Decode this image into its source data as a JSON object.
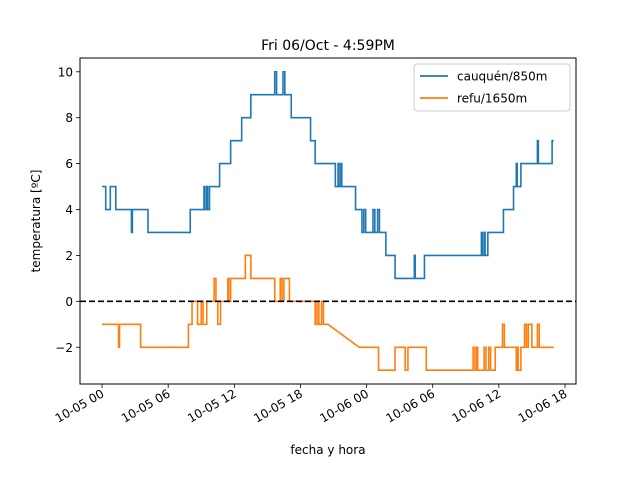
{
  "chart_data": {
    "type": "line",
    "title": "Fri 06/Oct - 4:59PM",
    "xlabel": "fecha y hora",
    "ylabel": "temperatura [ºC]",
    "x_unit": "hours",
    "xlim": [
      "2023-10-04 22:00",
      "2023-10-06 19:00"
    ],
    "ylim": [
      -3.6,
      10.6
    ],
    "grid": false,
    "legend_position": "top-right",
    "x_ticks": [
      {
        "value": "2023-10-05 00:00",
        "label": "10-05 00"
      },
      {
        "value": "2023-10-05 06:00",
        "label": "10-05 06"
      },
      {
        "value": "2023-10-05 12:00",
        "label": "10-05 12"
      },
      {
        "value": "2023-10-05 18:00",
        "label": "10-05 18"
      },
      {
        "value": "2023-10-06 00:00",
        "label": "10-06 00"
      },
      {
        "value": "2023-10-06 06:00",
        "label": "10-06 06"
      },
      {
        "value": "2023-10-06 12:00",
        "label": "10-06 12"
      },
      {
        "value": "2023-10-06 18:00",
        "label": "10-06 18"
      }
    ],
    "y_ticks": [
      -2,
      0,
      2,
      4,
      6,
      8,
      10
    ],
    "reference_line": {
      "y": 0,
      "style": "dashed",
      "color": "#000000"
    },
    "series": [
      {
        "name": "cauquén/850m",
        "color": "#1f77b4",
        "points": [
          [
            "2023-10-05 00:00",
            5
          ],
          [
            "2023-10-05 00:20",
            5
          ],
          [
            "2023-10-05 00:20",
            4
          ],
          [
            "2023-10-05 00:45",
            4
          ],
          [
            "2023-10-05 00:45",
            5
          ],
          [
            "2023-10-05 01:15",
            5
          ],
          [
            "2023-10-05 01:15",
            4
          ],
          [
            "2023-10-05 02:40",
            4
          ],
          [
            "2023-10-05 02:40",
            3
          ],
          [
            "2023-10-05 02:45",
            3
          ],
          [
            "2023-10-05 02:45",
            4
          ],
          [
            "2023-10-05 04:10",
            4
          ],
          [
            "2023-10-05 04:10",
            3
          ],
          [
            "2023-10-05 08:00",
            3
          ],
          [
            "2023-10-05 08:00",
            4
          ],
          [
            "2023-10-05 09:15",
            4
          ],
          [
            "2023-10-05 09:15",
            5
          ],
          [
            "2023-10-05 09:20",
            5
          ],
          [
            "2023-10-05 09:20",
            4
          ],
          [
            "2023-10-05 09:30",
            4
          ],
          [
            "2023-10-05 09:30",
            5
          ],
          [
            "2023-10-05 09:35",
            5
          ],
          [
            "2023-10-05 09:35",
            4
          ],
          [
            "2023-10-05 09:45",
            4
          ],
          [
            "2023-10-05 09:45",
            5
          ],
          [
            "2023-10-05 10:40",
            5
          ],
          [
            "2023-10-05 10:40",
            6
          ],
          [
            "2023-10-05 11:40",
            6
          ],
          [
            "2023-10-05 11:40",
            7
          ],
          [
            "2023-10-05 12:40",
            7
          ],
          [
            "2023-10-05 12:40",
            8
          ],
          [
            "2023-10-05 13:30",
            8
          ],
          [
            "2023-10-05 13:30",
            9
          ],
          [
            "2023-10-05 15:40",
            9
          ],
          [
            "2023-10-05 15:40",
            10
          ],
          [
            "2023-10-05 15:50",
            10
          ],
          [
            "2023-10-05 15:50",
            9
          ],
          [
            "2023-10-05 16:25",
            9
          ],
          [
            "2023-10-05 16:25",
            10
          ],
          [
            "2023-10-05 16:35",
            10
          ],
          [
            "2023-10-05 16:35",
            9
          ],
          [
            "2023-10-05 17:10",
            9
          ],
          [
            "2023-10-05 17:10",
            8
          ],
          [
            "2023-10-05 18:55",
            8
          ],
          [
            "2023-10-05 18:55",
            7
          ],
          [
            "2023-10-05 19:20",
            7
          ],
          [
            "2023-10-05 19:20",
            6
          ],
          [
            "2023-10-05 21:10",
            6
          ],
          [
            "2023-10-05 21:10",
            5
          ],
          [
            "2023-10-05 21:25",
            5
          ],
          [
            "2023-10-05 21:25",
            6
          ],
          [
            "2023-10-05 21:30",
            6
          ],
          [
            "2023-10-05 21:30",
            5
          ],
          [
            "2023-10-05 21:40",
            5
          ],
          [
            "2023-10-05 21:40",
            6
          ],
          [
            "2023-10-05 21:45",
            6
          ],
          [
            "2023-10-05 21:45",
            5
          ],
          [
            "2023-10-05 23:00",
            5
          ],
          [
            "2023-10-05 23:00",
            4
          ],
          [
            "2023-10-05 23:35",
            4
          ],
          [
            "2023-10-05 23:35",
            3
          ],
          [
            "2023-10-05 23:45",
            3
          ],
          [
            "2023-10-05 23:45",
            4
          ],
          [
            "2023-10-05 23:55",
            4
          ],
          [
            "2023-10-05 23:55",
            3
          ],
          [
            "2023-10-06 00:35",
            3
          ],
          [
            "2023-10-06 00:35",
            4
          ],
          [
            "2023-10-06 00:45",
            4
          ],
          [
            "2023-10-06 00:45",
            3
          ],
          [
            "2023-10-06 01:00",
            3
          ],
          [
            "2023-10-06 01:00",
            4
          ],
          [
            "2023-10-06 01:10",
            4
          ],
          [
            "2023-10-06 01:10",
            3
          ],
          [
            "2023-10-06 01:45",
            3
          ],
          [
            "2023-10-06 01:45",
            2
          ],
          [
            "2023-10-06 02:35",
            2
          ],
          [
            "2023-10-06 02:35",
            1
          ],
          [
            "2023-10-06 04:20",
            1
          ],
          [
            "2023-10-06 04:20",
            2
          ],
          [
            "2023-10-06 04:25",
            2
          ],
          [
            "2023-10-06 04:25",
            1
          ],
          [
            "2023-10-06 05:15",
            1
          ],
          [
            "2023-10-06 05:15",
            2
          ],
          [
            "2023-10-06 10:25",
            2
          ],
          [
            "2023-10-06 10:25",
            3
          ],
          [
            "2023-10-06 10:30",
            3
          ],
          [
            "2023-10-06 10:30",
            2
          ],
          [
            "2023-10-06 10:40",
            2
          ],
          [
            "2023-10-06 10:40",
            3
          ],
          [
            "2023-10-06 10:45",
            3
          ],
          [
            "2023-10-06 10:45",
            2
          ],
          [
            "2023-10-06 11:00",
            2
          ],
          [
            "2023-10-06 11:00",
            3
          ],
          [
            "2023-10-06 12:25",
            3
          ],
          [
            "2023-10-06 12:25",
            4
          ],
          [
            "2023-10-06 13:20",
            4
          ],
          [
            "2023-10-06 13:20",
            5
          ],
          [
            "2023-10-06 13:35",
            5
          ],
          [
            "2023-10-06 13:35",
            6
          ],
          [
            "2023-10-06 13:40",
            6
          ],
          [
            "2023-10-06 13:40",
            5
          ],
          [
            "2023-10-06 14:00",
            5
          ],
          [
            "2023-10-06 14:00",
            6
          ],
          [
            "2023-10-06 15:30",
            6
          ],
          [
            "2023-10-06 15:30",
            7
          ],
          [
            "2023-10-06 15:35",
            7
          ],
          [
            "2023-10-06 15:35",
            6
          ],
          [
            "2023-10-06 16:50",
            6
          ],
          [
            "2023-10-06 16:50",
            7
          ],
          [
            "2023-10-06 16:59",
            7
          ]
        ]
      },
      {
        "name": "refu/1650m",
        "color": "#ff7f0e",
        "points": [
          [
            "2023-10-05 00:00",
            -1
          ],
          [
            "2023-10-05 01:30",
            -1
          ],
          [
            "2023-10-05 01:30",
            -2
          ],
          [
            "2023-10-05 01:35",
            -2
          ],
          [
            "2023-10-05 01:35",
            -1
          ],
          [
            "2023-10-05 03:30",
            -1
          ],
          [
            "2023-10-05 03:30",
            -2
          ],
          [
            "2023-10-05 07:50",
            -2
          ],
          [
            "2023-10-05 07:50",
            -1
          ],
          [
            "2023-10-05 08:10",
            -1
          ],
          [
            "2023-10-05 08:10",
            0
          ],
          [
            "2023-10-05 08:40",
            0
          ],
          [
            "2023-10-05 08:40",
            -1
          ],
          [
            "2023-10-05 09:00",
            -1
          ],
          [
            "2023-10-05 09:00",
            0
          ],
          [
            "2023-10-05 09:10",
            0
          ],
          [
            "2023-10-05 09:10",
            -1
          ],
          [
            "2023-10-05 09:30",
            -1
          ],
          [
            "2023-10-05 09:30",
            0
          ],
          [
            "2023-10-05 10:10",
            0
          ],
          [
            "2023-10-05 10:10",
            1
          ],
          [
            "2023-10-05 10:20",
            1
          ],
          [
            "2023-10-05 10:20",
            0
          ],
          [
            "2023-10-05 10:30",
            0
          ],
          [
            "2023-10-05 10:30",
            -1
          ],
          [
            "2023-10-05 10:45",
            -1
          ],
          [
            "2023-10-05 10:45",
            0
          ],
          [
            "2023-10-05 11:25",
            0
          ],
          [
            "2023-10-05 11:25",
            1
          ],
          [
            "2023-10-05 11:30",
            1
          ],
          [
            "2023-10-05 11:30",
            0
          ],
          [
            "2023-10-05 11:40",
            0
          ],
          [
            "2023-10-05 11:40",
            1
          ],
          [
            "2023-10-05 13:00",
            1
          ],
          [
            "2023-10-05 13:00",
            2
          ],
          [
            "2023-10-05 13:30",
            2
          ],
          [
            "2023-10-05 13:30",
            1
          ],
          [
            "2023-10-05 15:40",
            1
          ],
          [
            "2023-10-05 15:40",
            0
          ],
          [
            "2023-10-05 16:10",
            0
          ],
          [
            "2023-10-05 16:10",
            1
          ],
          [
            "2023-10-05 16:20",
            1
          ],
          [
            "2023-10-05 16:20",
            0
          ],
          [
            "2023-10-05 16:30",
            0
          ],
          [
            "2023-10-05 16:30",
            1
          ],
          [
            "2023-10-05 17:00",
            1
          ],
          [
            "2023-10-05 17:00",
            0
          ],
          [
            "2023-10-05 19:20",
            0
          ],
          [
            "2023-10-05 19:20",
            -1
          ],
          [
            "2023-10-05 19:30",
            -1
          ],
          [
            "2023-10-05 19:30",
            0
          ],
          [
            "2023-10-05 19:40",
            0
          ],
          [
            "2023-10-05 19:40",
            -1
          ],
          [
            "2023-10-05 19:55",
            -1
          ],
          [
            "2023-10-05 19:55",
            0
          ],
          [
            "2023-10-05 20:05",
            0
          ],
          [
            "2023-10-05 20:05",
            -1
          ],
          [
            "2023-10-05 20:30",
            -1
          ],
          [
            "2023-10-05 23:20",
            -2
          ],
          [
            "2023-10-06 01:05",
            -2
          ],
          [
            "2023-10-06 01:05",
            -3
          ],
          [
            "2023-10-06 02:35",
            -3
          ],
          [
            "2023-10-06 02:35",
            -2
          ],
          [
            "2023-10-06 03:30",
            -2
          ],
          [
            "2023-10-06 03:30",
            -3
          ],
          [
            "2023-10-06 03:45",
            -3
          ],
          [
            "2023-10-06 03:45",
            -2
          ],
          [
            "2023-10-06 05:25",
            -2
          ],
          [
            "2023-10-06 05:25",
            -3
          ],
          [
            "2023-10-06 09:40",
            -3
          ],
          [
            "2023-10-06 09:40",
            -2
          ],
          [
            "2023-10-06 09:50",
            -2
          ],
          [
            "2023-10-06 09:50",
            -3
          ],
          [
            "2023-10-06 10:00",
            -3
          ],
          [
            "2023-10-06 10:00",
            -2
          ],
          [
            "2023-10-06 10:05",
            -2
          ],
          [
            "2023-10-06 10:05",
            -3
          ],
          [
            "2023-10-06 10:40",
            -3
          ],
          [
            "2023-10-06 10:40",
            -2
          ],
          [
            "2023-10-06 10:50",
            -2
          ],
          [
            "2023-10-06 10:50",
            -3
          ],
          [
            "2023-10-06 11:05",
            -3
          ],
          [
            "2023-10-06 11:05",
            -2
          ],
          [
            "2023-10-06 11:15",
            -2
          ],
          [
            "2023-10-06 11:15",
            -3
          ],
          [
            "2023-10-06 11:40",
            -3
          ],
          [
            "2023-10-06 11:40",
            -2
          ],
          [
            "2023-10-06 12:20",
            -2
          ],
          [
            "2023-10-06 12:20",
            -1
          ],
          [
            "2023-10-06 12:30",
            -1
          ],
          [
            "2023-10-06 12:30",
            -2
          ],
          [
            "2023-10-06 13:35",
            -2
          ],
          [
            "2023-10-06 13:35",
            -3
          ],
          [
            "2023-10-06 13:40",
            -3
          ],
          [
            "2023-10-06 13:40",
            -2
          ],
          [
            "2023-10-06 13:45",
            -2
          ],
          [
            "2023-10-06 13:45",
            -3
          ],
          [
            "2023-10-06 14:00",
            -3
          ],
          [
            "2023-10-06 14:00",
            -2
          ],
          [
            "2023-10-06 14:20",
            -2
          ],
          [
            "2023-10-06 14:20",
            -1
          ],
          [
            "2023-10-06 14:30",
            -1
          ],
          [
            "2023-10-06 14:30",
            -2
          ],
          [
            "2023-10-06 14:40",
            -2
          ],
          [
            "2023-10-06 14:40",
            -1
          ],
          [
            "2023-10-06 15:00",
            -1
          ],
          [
            "2023-10-06 15:00",
            -2
          ],
          [
            "2023-10-06 15:30",
            -2
          ],
          [
            "2023-10-06 15:30",
            -1
          ],
          [
            "2023-10-06 15:40",
            -1
          ],
          [
            "2023-10-06 15:40",
            -2
          ],
          [
            "2023-10-06 16:59",
            -2
          ]
        ]
      }
    ]
  }
}
